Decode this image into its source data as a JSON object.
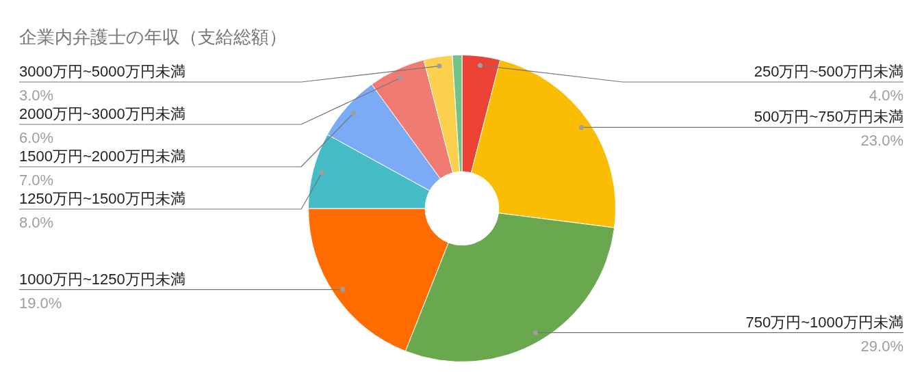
{
  "chart_data": {
    "type": "donut",
    "title": "企業内弁護士の年収（支給総額）",
    "categories": [
      "250万円~500万円未満",
      "500万円~750万円未満",
      "750万円~1000万円未満",
      "1000万円~1250万円未満",
      "1250万円~1500万円未満",
      "1500万円~2000万円未満",
      "2000万円~3000万円未満",
      "3000万円~5000万円未満",
      null
    ],
    "values": [
      4,
      23,
      29,
      19,
      8,
      7,
      6,
      3,
      1
    ],
    "value_labels": [
      "4.0%",
      "23.0%",
      "29.0%",
      "19.0%",
      "8.0%",
      "7.0%",
      "6.0%",
      "3.0%",
      null
    ],
    "colors": [
      "#ea4335",
      "#fbbc04",
      "#6aa84f",
      "#ff6d01",
      "#46bdc6",
      "#7baaf7",
      "#f07b72",
      "#fcd04f",
      "#71c287"
    ],
    "legend": false
  }
}
